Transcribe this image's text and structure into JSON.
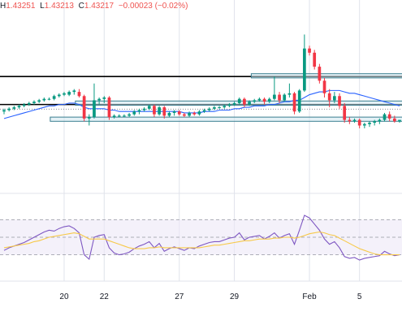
{
  "header": {
    "high_label": "H",
    "high": "1.43251",
    "low_label": "L",
    "low": "1.43213",
    "close_label": "C",
    "close": "1.43217",
    "change": "−0.00023 (−0.02%)"
  },
  "colors": {
    "up": "#089981",
    "down": "#f23645",
    "ma": "#2962ff",
    "rsi": "#7e57c2",
    "rsi_ma": "#f7c948",
    "rsi_band": "#ede7f6",
    "zone_fill": "#cfe8f0",
    "zone_border": "#3a7d8f",
    "grid": "#e0e3eb"
  },
  "chart_data": [
    {
      "type": "candlestick",
      "title": "",
      "x_tick_labels": [
        "20",
        "22",
        "27",
        "29",
        "Feb",
        "5"
      ],
      "y_range": [
        1.4265,
        1.4395
      ],
      "grid": true,
      "horizontal_levels": [
        1.4345,
        1.4325
      ],
      "zones": [
        [
          1.4344,
          1.4347
        ],
        [
          1.43245,
          1.43275
        ],
        [
          1.4313,
          1.4316
        ]
      ],
      "candles": [
        [
          1.432,
          1.4322,
          1.4318,
          1.4321
        ],
        [
          1.4321,
          1.4323,
          1.432,
          1.4322
        ],
        [
          1.4322,
          1.4324,
          1.4321,
          1.4323
        ],
        [
          1.4323,
          1.4325,
          1.4322,
          1.4324
        ],
        [
          1.4324,
          1.4326,
          1.4323,
          1.4325
        ],
        [
          1.4325,
          1.4327,
          1.4324,
          1.4326
        ],
        [
          1.4326,
          1.4328,
          1.4325,
          1.4327
        ],
        [
          1.4327,
          1.4329,
          1.4326,
          1.4328
        ],
        [
          1.4328,
          1.433,
          1.4327,
          1.4329
        ],
        [
          1.4329,
          1.433,
          1.4328,
          1.4329
        ],
        [
          1.4329,
          1.4332,
          1.4328,
          1.4331
        ],
        [
          1.4331,
          1.4333,
          1.433,
          1.4332
        ],
        [
          1.4332,
          1.4334,
          1.4331,
          1.4333
        ],
        [
          1.4332,
          1.4335,
          1.4331,
          1.4334
        ],
        [
          1.4334,
          1.4336,
          1.4332,
          1.4335
        ],
        [
          1.4334,
          1.4336,
          1.433,
          1.4331
        ],
        [
          1.4331,
          1.4332,
          1.4313,
          1.4315
        ],
        [
          1.4315,
          1.4318,
          1.431,
          1.4316
        ],
        [
          1.4316,
          1.434,
          1.4315,
          1.4328
        ],
        [
          1.4328,
          1.433,
          1.4325,
          1.4329
        ],
        [
          1.4329,
          1.4331,
          1.4326,
          1.433
        ],
        [
          1.433,
          1.4331,
          1.4314,
          1.4316
        ],
        [
          1.4316,
          1.4318,
          1.4315,
          1.4317
        ],
        [
          1.4317,
          1.4318,
          1.4316,
          1.4317
        ],
        [
          1.4317,
          1.4318,
          1.4316,
          1.4317
        ],
        [
          1.4317,
          1.4319,
          1.4316,
          1.4318
        ],
        [
          1.4318,
          1.4321,
          1.4317,
          1.432
        ],
        [
          1.432,
          1.4322,
          1.4318,
          1.4321
        ],
        [
          1.4321,
          1.4323,
          1.432,
          1.4322
        ],
        [
          1.4322,
          1.4325,
          1.4321,
          1.4324
        ],
        [
          1.4324,
          1.4325,
          1.4316,
          1.4318
        ],
        [
          1.4318,
          1.4324,
          1.4317,
          1.4323
        ],
        [
          1.4323,
          1.4324,
          1.4315,
          1.4317
        ],
        [
          1.4317,
          1.432,
          1.4316,
          1.4319
        ],
        [
          1.4319,
          1.4321,
          1.4317,
          1.432
        ],
        [
          1.432,
          1.4321,
          1.4317,
          1.4318
        ],
        [
          1.4318,
          1.4319,
          1.4316,
          1.4317
        ],
        [
          1.4317,
          1.432,
          1.4316,
          1.4319
        ],
        [
          1.4319,
          1.432,
          1.4317,
          1.4318
        ],
        [
          1.4318,
          1.4321,
          1.4317,
          1.432
        ],
        [
          1.432,
          1.4322,
          1.4319,
          1.4321
        ],
        [
          1.4321,
          1.4323,
          1.432,
          1.4322
        ],
        [
          1.4322,
          1.4324,
          1.4321,
          1.4323
        ],
        [
          1.4323,
          1.4324,
          1.4322,
          1.4323
        ],
        [
          1.4323,
          1.4325,
          1.4322,
          1.4324
        ],
        [
          1.4324,
          1.4326,
          1.4323,
          1.4325
        ],
        [
          1.4325,
          1.4327,
          1.4324,
          1.4326
        ],
        [
          1.4326,
          1.433,
          1.4325,
          1.4329
        ],
        [
          1.4329,
          1.433,
          1.4323,
          1.4325
        ],
        [
          1.4325,
          1.4328,
          1.4324,
          1.4327
        ],
        [
          1.4327,
          1.4329,
          1.4326,
          1.4328
        ],
        [
          1.4328,
          1.433,
          1.4327,
          1.4329
        ],
        [
          1.4329,
          1.433,
          1.4325,
          1.4327
        ],
        [
          1.4327,
          1.433,
          1.4326,
          1.4329
        ],
        [
          1.4329,
          1.4345,
          1.4328,
          1.4332
        ],
        [
          1.4332,
          1.4334,
          1.4326,
          1.4328
        ],
        [
          1.4328,
          1.4333,
          1.4327,
          1.4332
        ],
        [
          1.4332,
          1.434,
          1.433,
          1.4333
        ],
        [
          1.4333,
          1.4334,
          1.4318,
          1.432
        ],
        [
          1.432,
          1.4336,
          1.4319,
          1.4335
        ],
        [
          1.4335,
          1.4375,
          1.4334,
          1.4365
        ],
        [
          1.4365,
          1.4367,
          1.436,
          1.4362
        ],
        [
          1.4362,
          1.4364,
          1.435,
          1.4352
        ],
        [
          1.4352,
          1.4354,
          1.434,
          1.4342
        ],
        [
          1.4342,
          1.4344,
          1.433,
          1.4333
        ],
        [
          1.4333,
          1.4336,
          1.4323,
          1.4328
        ],
        [
          1.4328,
          1.4334,
          1.4326,
          1.4331
        ],
        [
          1.4331,
          1.4333,
          1.4322,
          1.4324
        ],
        [
          1.4324,
          1.4326,
          1.4312,
          1.4314
        ],
        [
          1.4314,
          1.4316,
          1.4311,
          1.4313
        ],
        [
          1.4313,
          1.4315,
          1.4312,
          1.4314
        ],
        [
          1.4314,
          1.4315,
          1.4308,
          1.431
        ],
        [
          1.431,
          1.4312,
          1.4308,
          1.4311
        ],
        [
          1.4311,
          1.4313,
          1.4309,
          1.4312
        ],
        [
          1.4312,
          1.4314,
          1.431,
          1.4313
        ],
        [
          1.4313,
          1.4315,
          1.4311,
          1.4314
        ],
        [
          1.4314,
          1.4319,
          1.4313,
          1.4318
        ],
        [
          1.4318,
          1.432,
          1.4313,
          1.4315
        ],
        [
          1.4315,
          1.4317,
          1.4312,
          1.4313
        ],
        [
          1.4313,
          1.4314,
          1.4312,
          1.4314
        ]
      ],
      "ma": [
        1.4315,
        1.4316,
        1.4317,
        1.4318,
        1.4319,
        1.432,
        1.4321,
        1.4322,
        1.4323,
        1.4324,
        1.4324,
        1.4325,
        1.4325,
        1.4326,
        1.4326,
        1.4325,
        1.4323,
        1.4322,
        1.4322,
        1.4322,
        1.4322,
        1.4321,
        1.4321,
        1.432,
        1.432,
        1.432,
        1.432,
        1.432,
        1.432,
        1.432,
        1.432,
        1.432,
        1.432,
        1.432,
        1.432,
        1.432,
        1.4319,
        1.4319,
        1.4319,
        1.4319,
        1.432,
        1.432,
        1.432,
        1.4321,
        1.4321,
        1.4321,
        1.4322,
        1.4322,
        1.4323,
        1.4323,
        1.4324,
        1.4324,
        1.4324,
        1.4325,
        1.4325,
        1.4326,
        1.4327,
        1.4327,
        1.4328,
        1.4328,
        1.433,
        1.4332,
        1.4333,
        1.4334,
        1.4334,
        1.4335,
        1.4335,
        1.4335,
        1.4334,
        1.4333,
        1.4333,
        1.4332,
        1.4331,
        1.433,
        1.4329,
        1.4328,
        1.4327,
        1.4326,
        1.4325,
        1.4324
      ]
    },
    {
      "type": "line",
      "title": "",
      "y_range": [
        0,
        100
      ],
      "bands": [
        30,
        50,
        70
      ],
      "series": [
        {
          "values": [
            35,
            38,
            40,
            42,
            44,
            47,
            50,
            53,
            56,
            58,
            57,
            60,
            62,
            63,
            60,
            55,
            30,
            25,
            50,
            52,
            53,
            38,
            32,
            30,
            31,
            33,
            37,
            40,
            42,
            45,
            38,
            43,
            34,
            37,
            39,
            37,
            35,
            38,
            37,
            40,
            42,
            44,
            45,
            45,
            47,
            49,
            50,
            55,
            47,
            50,
            51,
            52,
            48,
            51,
            55,
            49,
            52,
            54,
            42,
            58,
            75,
            72,
            65,
            58,
            48,
            42,
            45,
            38,
            28,
            26,
            27,
            24,
            26,
            27,
            28,
            29,
            34,
            31,
            29,
            30
          ]
        },
        {
          "values": [
            38,
            39,
            40,
            41,
            42,
            43,
            45,
            46,
            48,
            50,
            51,
            52,
            53,
            54,
            55,
            54,
            51,
            48,
            48,
            48,
            48,
            46,
            44,
            42,
            40,
            38,
            37,
            37,
            37,
            38,
            38,
            39,
            38,
            38,
            38,
            38,
            38,
            38,
            38,
            38,
            39,
            40,
            41,
            41,
            42,
            43,
            44,
            45,
            46,
            46,
            47,
            48,
            48,
            48,
            49,
            49,
            50,
            50,
            49,
            50,
            52,
            54,
            55,
            56,
            55,
            53,
            52,
            49,
            46,
            43,
            40,
            37,
            35,
            33,
            31,
            30,
            30,
            30,
            30,
            30
          ]
        }
      ]
    }
  ]
}
